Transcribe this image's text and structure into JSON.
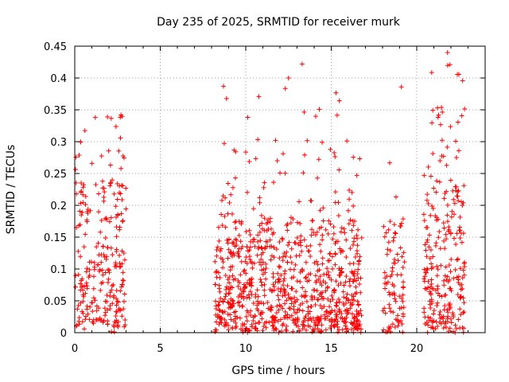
{
  "chart_data": {
    "type": "scatter",
    "title": "Day 235 of 2025, SRMTID for receiver murk",
    "xlabel": "GPS time / hours",
    "ylabel": "SRMTID / TECUs",
    "xlim": [
      0,
      24
    ],
    "ylim": [
      0,
      0.45
    ],
    "x_ticks": [
      "0",
      "5",
      "10",
      "15",
      "20"
    ],
    "y_ticks": [
      "0",
      "0.05",
      "0.1",
      "0.15",
      "0.2",
      "0.25",
      "0.3",
      "0.35",
      "0.4",
      "0.45"
    ],
    "grid": true,
    "marker": "+",
    "color": "#ff0000",
    "clusters": [
      {
        "x_start": 0.0,
        "x_end": 3.0,
        "y_mean": 0.12,
        "y_max": 0.34,
        "count": 260
      },
      {
        "x_start": 8.2,
        "x_end": 16.8,
        "y_mean": 0.09,
        "y_max": 0.42,
        "count": 900
      },
      {
        "x_start": 18.0,
        "x_end": 19.3,
        "y_mean": 0.09,
        "y_max": 0.385,
        "count": 90
      },
      {
        "x_start": 20.4,
        "x_end": 22.8,
        "y_mean": 0.12,
        "y_max": 0.44,
        "count": 260
      }
    ],
    "highlights": [
      {
        "x": 13.3,
        "y": 0.422
      },
      {
        "x": 21.8,
        "y": 0.44
      },
      {
        "x": 19.1,
        "y": 0.386
      },
      {
        "x": 8.7,
        "y": 0.387
      },
      {
        "x": 12.5,
        "y": 0.4
      },
      {
        "x": 2.7,
        "y": 0.342
      },
      {
        "x": 1.2,
        "y": 0.338
      }
    ]
  }
}
